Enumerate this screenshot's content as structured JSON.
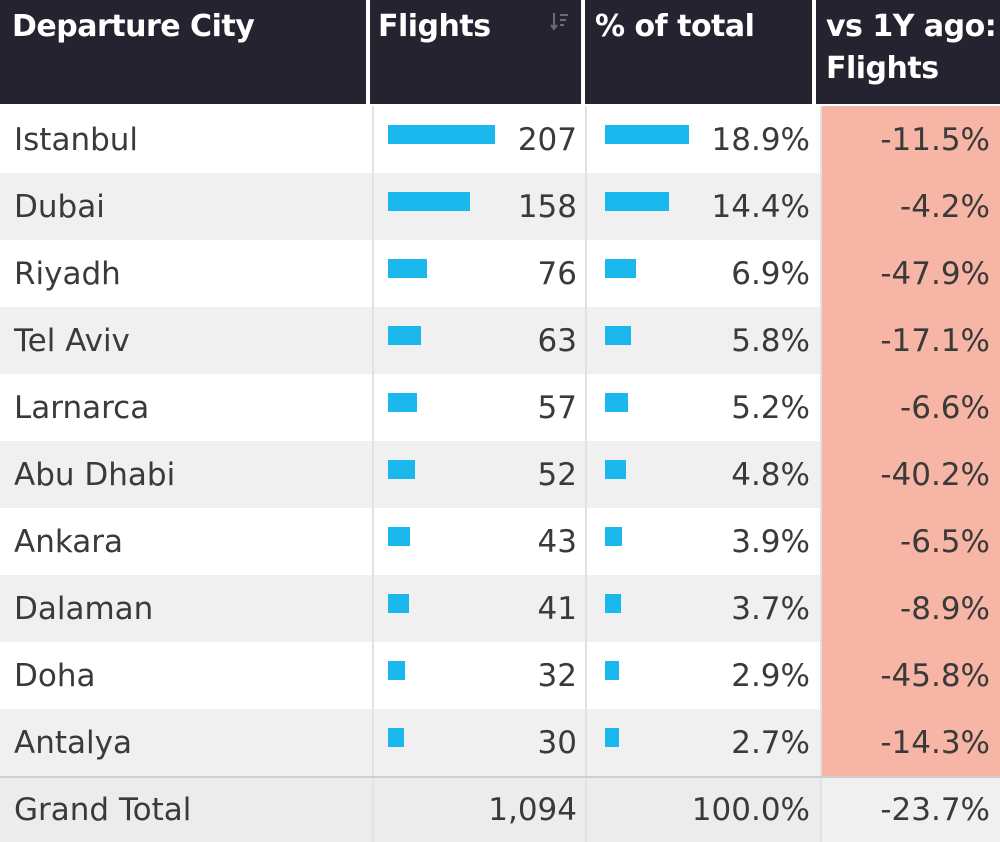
{
  "table": {
    "headers": {
      "city": "Departure City",
      "flights": "Flights",
      "pct": "% of total",
      "vs1y": "vs 1Y ago: Flights"
    },
    "rows": [
      {
        "city": "Istanbul",
        "flights": "207",
        "pct": "18.9%",
        "vs1y": "-11.5%"
      },
      {
        "city": "Dubai",
        "flights": "158",
        "pct": "14.4%",
        "vs1y": "-4.2%"
      },
      {
        "city": "Riyadh",
        "flights": "76",
        "pct": "6.9%",
        "vs1y": "-47.9%"
      },
      {
        "city": "Tel Aviv",
        "flights": "63",
        "pct": "5.8%",
        "vs1y": "-17.1%"
      },
      {
        "city": "Larnarca",
        "flights": "57",
        "pct": "5.2%",
        "vs1y": "-6.6%"
      },
      {
        "city": "Abu Dhabi",
        "flights": "52",
        "pct": "4.8%",
        "vs1y": "-40.2%"
      },
      {
        "city": "Ankara",
        "flights": "43",
        "pct": "3.9%",
        "vs1y": "-6.5%"
      },
      {
        "city": "Dalaman",
        "flights": "41",
        "pct": "3.7%",
        "vs1y": "-8.9%"
      },
      {
        "city": "Doha",
        "flights": "32",
        "pct": "2.9%",
        "vs1y": "-45.8%"
      },
      {
        "city": "Antalya",
        "flights": "30",
        "pct": "2.7%",
        "vs1y": "-14.3%"
      }
    ],
    "total": {
      "city": "Grand Total",
      "flights": "1,094",
      "pct": "100.0%",
      "vs1y": "-23.7%"
    }
  },
  "colors": {
    "header_bg": "#25232f",
    "bar": "#1ab8ec",
    "negative_change_bg": "#f7b5a6",
    "alt_row_bg": "#f0f0f0"
  },
  "icons": {
    "flights_sort": "sort-descending-icon"
  },
  "chart_data": {
    "type": "table",
    "columns": [
      "Departure City",
      "Flights",
      "% of total",
      "vs 1Y ago: Flights"
    ],
    "categories": [
      "Istanbul",
      "Dubai",
      "Riyadh",
      "Tel Aviv",
      "Larnarca",
      "Abu Dhabi",
      "Ankara",
      "Dalaman",
      "Doha",
      "Antalya"
    ],
    "series": [
      {
        "name": "Flights",
        "values": [
          207,
          158,
          76,
          63,
          57,
          52,
          43,
          41,
          32,
          30
        ]
      },
      {
        "name": "% of total",
        "values": [
          18.9,
          14.4,
          6.9,
          5.8,
          5.2,
          4.8,
          3.9,
          3.7,
          2.9,
          2.7
        ]
      },
      {
        "name": "vs 1Y ago: Flights",
        "values": [
          -11.5,
          -4.2,
          -47.9,
          -17.1,
          -6.6,
          -40.2,
          -6.5,
          -8.9,
          -45.8,
          -14.3
        ]
      }
    ],
    "totals": {
      "Flights": 1094,
      "% of total": 100.0,
      "vs 1Y ago: Flights": -23.7
    }
  }
}
